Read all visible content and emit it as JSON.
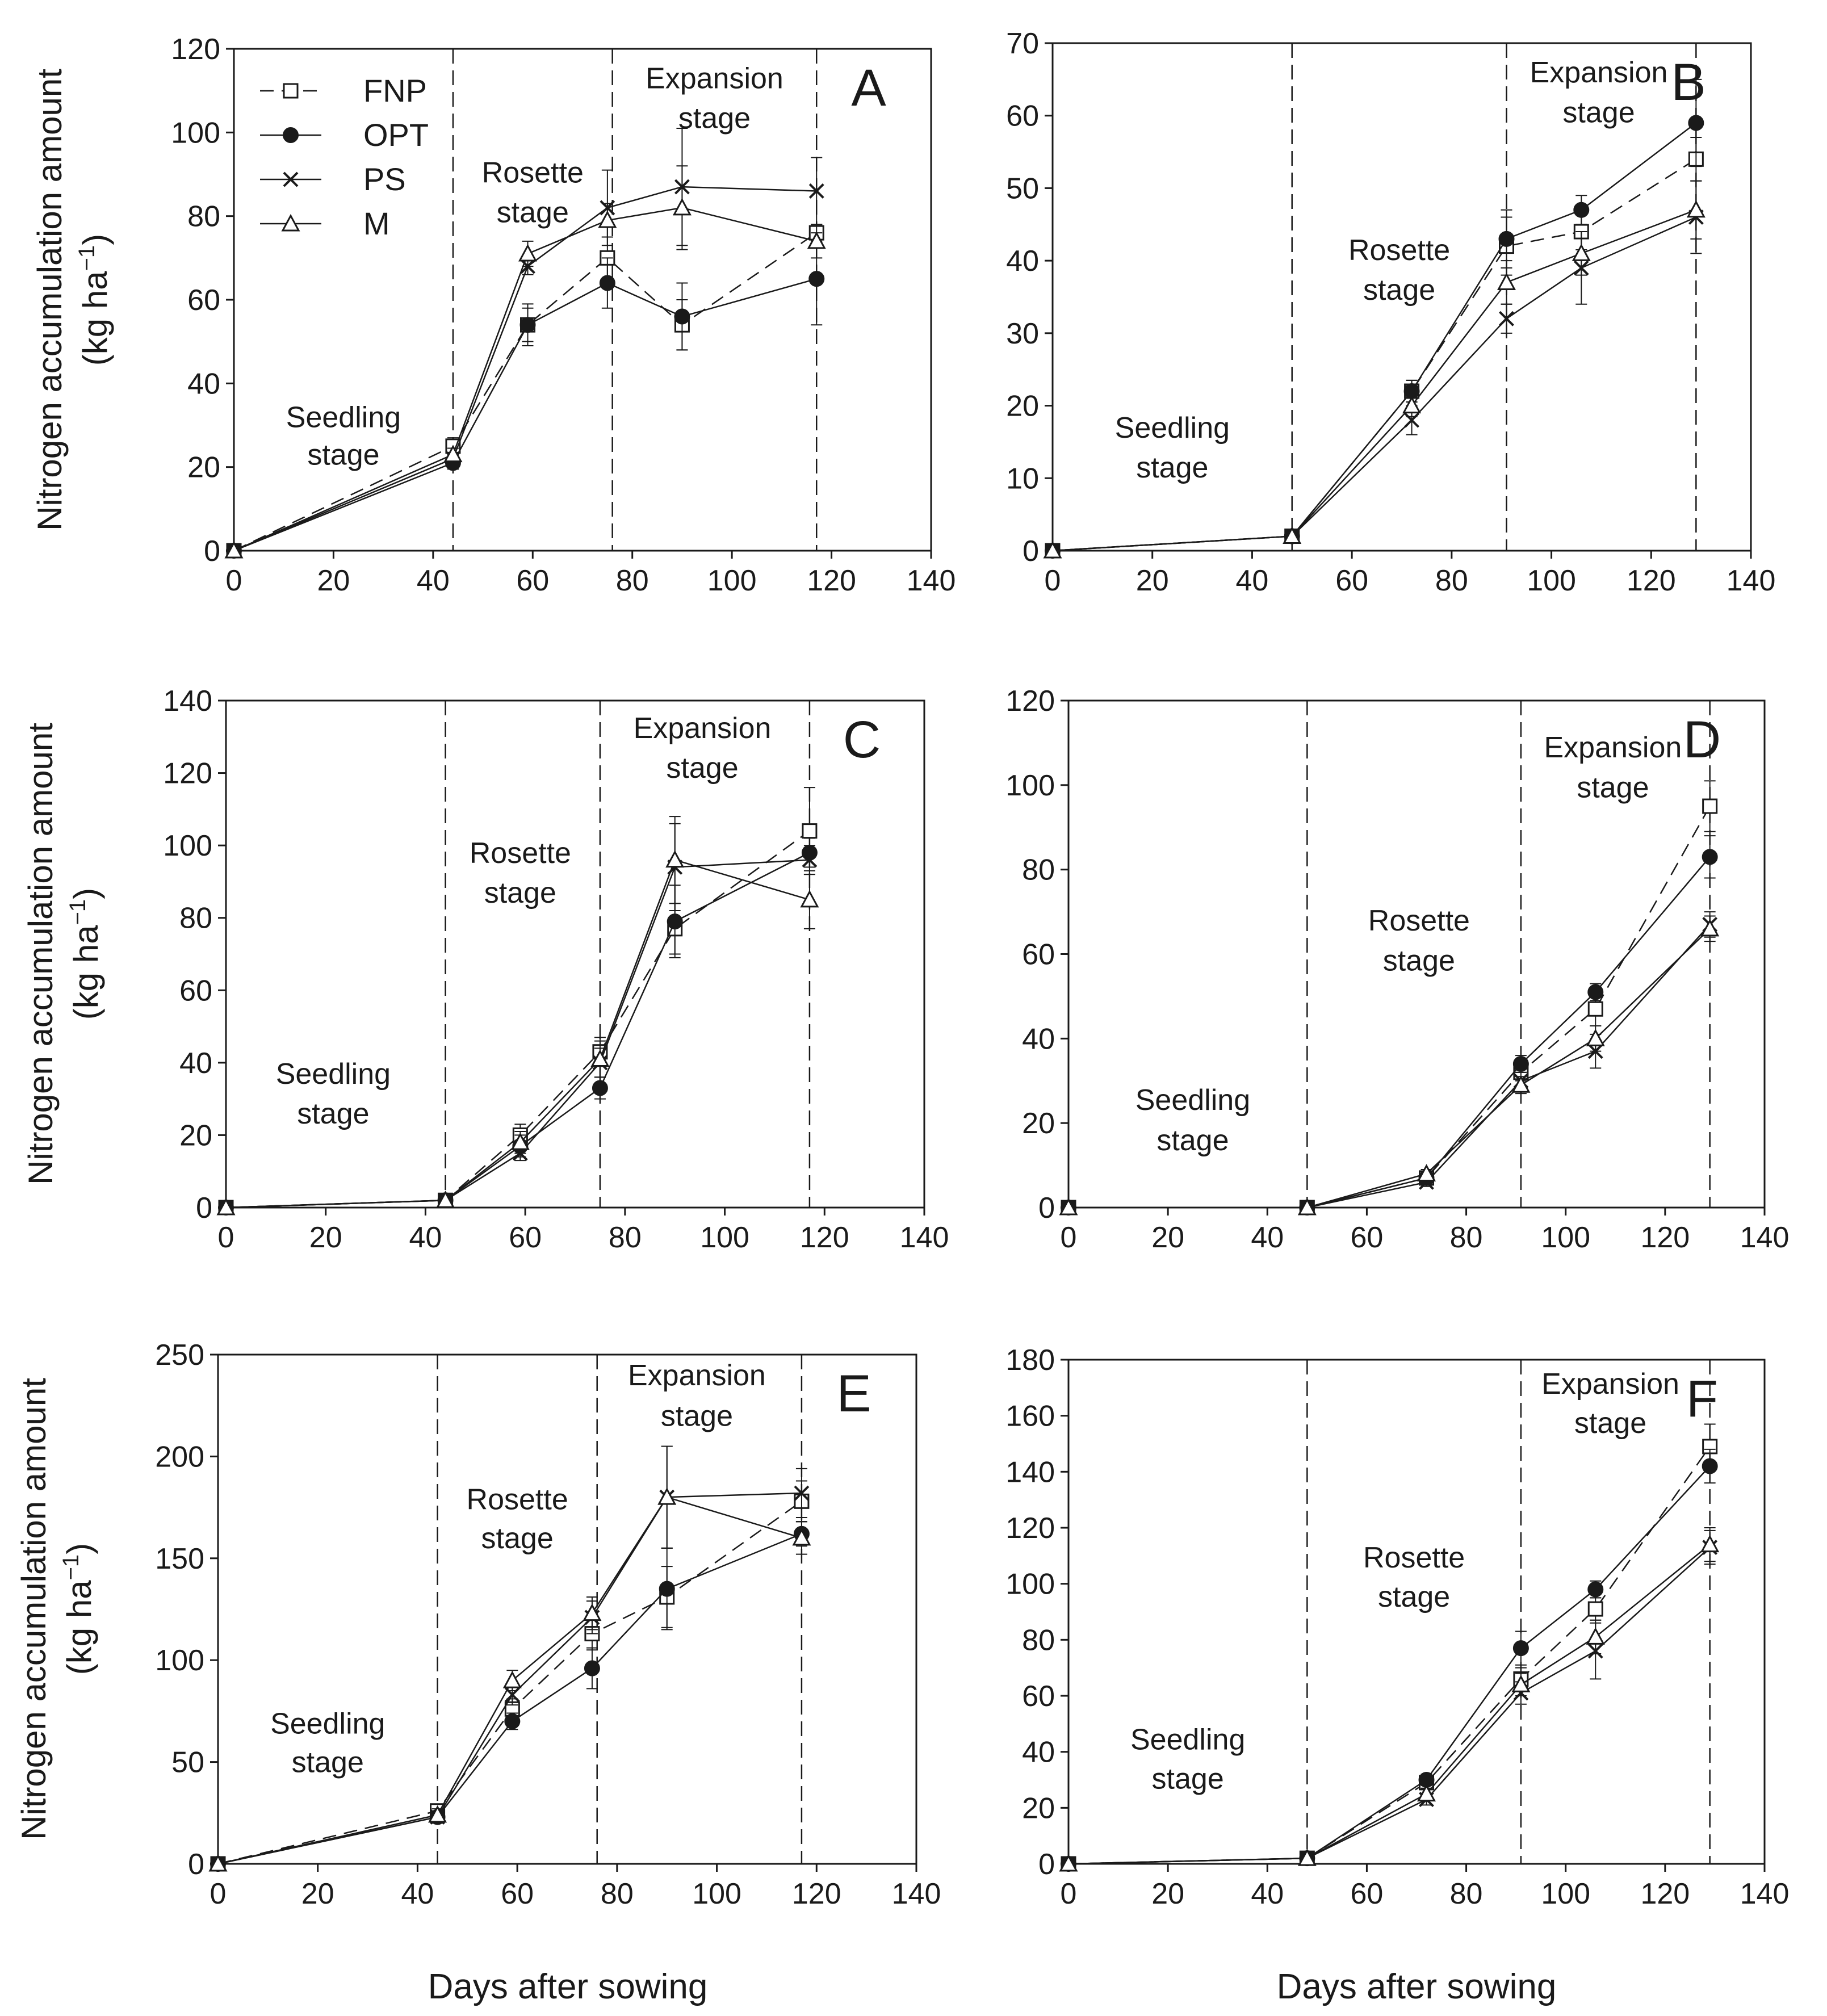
{
  "figure": {
    "x_axis_label": "Days after sowing",
    "y_axis_label_main": "Nitrogen accumulation amount",
    "y_axis_label_unit_base": "(kg ha",
    "y_axis_label_unit_sup": "−1",
    "y_axis_label_unit_end": ")"
  },
  "legend": {
    "entries": [
      {
        "series": "FNP",
        "label": "FNP"
      },
      {
        "series": "OPT",
        "label": "OPT"
      },
      {
        "series": "PS",
        "label": "PS"
      },
      {
        "series": "M",
        "label": "M"
      }
    ]
  },
  "chart_data": [
    {
      "panel": "A",
      "type": "line",
      "xlim": [
        0,
        140
      ],
      "ylim": [
        0,
        120
      ],
      "xticks": [
        0,
        20,
        40,
        60,
        80,
        100,
        120,
        140
      ],
      "yticks": [
        0,
        20,
        40,
        60,
        80,
        100,
        120
      ],
      "stage_lines": [
        44,
        76,
        117
      ],
      "stages": [
        {
          "line1": "Seedling",
          "line2": "stage",
          "x": 22,
          "y1": 32,
          "y2": 23
        },
        {
          "line1": "Rosette",
          "line2": "stage",
          "x": 60,
          "y1": 90.5,
          "y2": 81
        },
        {
          "line1": "Expansion",
          "line2": "stage",
          "x": 96.5,
          "y1": 113,
          "y2": 103.5
        }
      ],
      "x": [
        0,
        44,
        59,
        75,
        90,
        117
      ],
      "series": [
        {
          "name": "FNP",
          "values": [
            0,
            25,
            54,
            70,
            54,
            76
          ],
          "errors": [
            0,
            2,
            4,
            5,
            6,
            2
          ]
        },
        {
          "name": "OPT",
          "values": [
            0,
            21,
            54,
            64,
            56,
            65
          ],
          "errors": [
            0,
            1.5,
            5,
            6,
            8,
            11
          ]
        },
        {
          "name": "PS",
          "values": [
            0,
            22,
            68,
            82,
            87,
            86
          ],
          "errors": [
            0,
            1.5,
            2,
            9,
            14,
            8
          ]
        },
        {
          "name": "M",
          "values": [
            0,
            23,
            71,
            79,
            82,
            74
          ],
          "errors": [
            0,
            1.5,
            3,
            4,
            10,
            4
          ]
        }
      ]
    },
    {
      "panel": "B",
      "type": "line",
      "xlim": [
        0,
        140
      ],
      "ylim": [
        0,
        70
      ],
      "xticks": [
        0,
        20,
        40,
        60,
        80,
        100,
        120,
        140
      ],
      "yticks": [
        0,
        10,
        20,
        30,
        40,
        50,
        60,
        70
      ],
      "stage_lines": [
        48,
        91,
        129
      ],
      "stages": [
        {
          "line1": "Seedling",
          "line2": "stage",
          "x": 24,
          "y1": 17,
          "y2": 11.5
        },
        {
          "line1": "Rosette",
          "line2": "stage",
          "x": 69.5,
          "y1": 41.5,
          "y2": 36
        },
        {
          "line1": "Expansion",
          "line2": "stage",
          "x": 109.5,
          "y1": 66,
          "y2": 60.5
        }
      ],
      "x": [
        0,
        48,
        72,
        91,
        106,
        129
      ],
      "series": [
        {
          "name": "FNP",
          "values": [
            0,
            2,
            22,
            42,
            44,
            54
          ],
          "errors": [
            0,
            0.5,
            1.5,
            4,
            2.5,
            3
          ]
        },
        {
          "name": "OPT",
          "values": [
            0,
            2,
            22,
            43,
            47,
            59
          ],
          "errors": [
            0,
            0.5,
            1.5,
            4,
            2,
            6
          ]
        },
        {
          "name": "PS",
          "values": [
            0,
            2,
            18,
            32,
            39,
            46
          ],
          "errors": [
            0,
            0.5,
            2,
            2,
            5,
            5
          ]
        },
        {
          "name": "M",
          "values": [
            0,
            2,
            20,
            37,
            41,
            47
          ],
          "errors": [
            0,
            0.5,
            1.5,
            3,
            3,
            4
          ]
        }
      ]
    },
    {
      "panel": "C",
      "type": "line",
      "xlim": [
        0,
        140
      ],
      "ylim": [
        0,
        140
      ],
      "xticks": [
        0,
        20,
        40,
        60,
        80,
        100,
        120,
        140
      ],
      "yticks": [
        0,
        20,
        40,
        60,
        80,
        100,
        120,
        140
      ],
      "stage_lines": [
        44,
        75,
        117
      ],
      "stages": [
        {
          "line1": "Seedling",
          "line2": "stage",
          "x": 21.5,
          "y1": 37,
          "y2": 26
        },
        {
          "line1": "Rosette",
          "line2": "stage",
          "x": 59,
          "y1": 98,
          "y2": 87
        },
        {
          "line1": "Expansion",
          "line2": "stage",
          "x": 95.5,
          "y1": 132.5,
          "y2": 121.5
        }
      ],
      "x": [
        0,
        44,
        59,
        75,
        90,
        117
      ],
      "series": [
        {
          "name": "FNP",
          "values": [
            0,
            2,
            20,
            43,
            77,
            104
          ],
          "errors": [
            0,
            1,
            3,
            4,
            7,
            12
          ]
        },
        {
          "name": "OPT",
          "values": [
            0,
            2,
            17,
            33,
            79,
            98
          ],
          "errors": [
            0,
            1,
            3,
            3,
            10,
            4
          ]
        },
        {
          "name": "PS",
          "values": [
            0,
            2,
            15,
            40,
            94,
            96
          ],
          "errors": [
            0,
            1,
            2,
            4,
            12,
            4
          ]
        },
        {
          "name": "M",
          "values": [
            0,
            2,
            18,
            41,
            96,
            85
          ],
          "errors": [
            0,
            1,
            3,
            5,
            12,
            8
          ]
        }
      ]
    },
    {
      "panel": "D",
      "type": "line",
      "xlim": [
        0,
        140
      ],
      "ylim": [
        0,
        120
      ],
      "xticks": [
        0,
        20,
        40,
        60,
        80,
        100,
        120,
        140
      ],
      "yticks": [
        0,
        20,
        40,
        60,
        80,
        100,
        120
      ],
      "stage_lines": [
        48,
        91,
        129
      ],
      "stages": [
        {
          "line1": "Seedling",
          "line2": "stage",
          "x": 25,
          "y1": 25.5,
          "y2": 16
        },
        {
          "line1": "Rosette",
          "line2": "stage",
          "x": 70.5,
          "y1": 68,
          "y2": 58.5
        },
        {
          "line1": "Expansion",
          "line2": "stage",
          "x": 109.5,
          "y1": 109,
          "y2": 99.5
        }
      ],
      "x": [
        0,
        48,
        72,
        91,
        106,
        129
      ],
      "series": [
        {
          "name": "FNP",
          "values": [
            0,
            0,
            7,
            32,
            47,
            95
          ],
          "errors": [
            0,
            0.5,
            1,
            2,
            4,
            6
          ]
        },
        {
          "name": "OPT",
          "values": [
            0,
            0,
            7,
            34,
            51,
            83
          ],
          "errors": [
            0,
            0.5,
            1,
            2,
            2,
            5
          ]
        },
        {
          "name": "PS",
          "values": [
            0,
            0,
            6,
            30,
            37,
            67
          ],
          "errors": [
            0,
            0.5,
            1,
            2,
            4,
            3
          ]
        },
        {
          "name": "M",
          "values": [
            0,
            0,
            8,
            29,
            40,
            66
          ],
          "errors": [
            0,
            0.5,
            1,
            2,
            3,
            3
          ]
        }
      ]
    },
    {
      "panel": "E",
      "type": "line",
      "xlim": [
        0,
        140
      ],
      "ylim": [
        0,
        250
      ],
      "xticks": [
        0,
        20,
        40,
        60,
        80,
        100,
        120,
        140
      ],
      "yticks": [
        0,
        50,
        100,
        150,
        200,
        250
      ],
      "stage_lines": [
        44,
        76,
        117
      ],
      "stages": [
        {
          "line1": "Seedling",
          "line2": "stage",
          "x": 22,
          "y1": 69,
          "y2": 50
        },
        {
          "line1": "Rosette",
          "line2": "stage",
          "x": 60,
          "y1": 179,
          "y2": 160
        },
        {
          "line1": "Expansion",
          "line2": "stage",
          "x": 96,
          "y1": 240,
          "y2": 220
        }
      ],
      "x": [
        0,
        44,
        59,
        75,
        90,
        117
      ],
      "series": [
        {
          "name": "FNP",
          "values": [
            0,
            26,
            76,
            113,
            131,
            178
          ],
          "errors": [
            0,
            3,
            5,
            8,
            15,
            10
          ]
        },
        {
          "name": "OPT",
          "values": [
            0,
            23,
            70,
            96,
            135,
            162
          ],
          "errors": [
            0,
            3,
            4,
            10,
            20,
            6
          ]
        },
        {
          "name": "PS",
          "values": [
            0,
            23,
            83,
            121,
            180,
            182
          ],
          "errors": [
            0,
            3,
            5,
            8,
            25,
            12
          ]
        },
        {
          "name": "M",
          "values": [
            0,
            24,
            90,
            123,
            180,
            160
          ],
          "errors": [
            0,
            3,
            5,
            8,
            25,
            8
          ]
        }
      ]
    },
    {
      "panel": "F",
      "type": "line",
      "xlim": [
        0,
        140
      ],
      "ylim": [
        0,
        180
      ],
      "xticks": [
        0,
        20,
        40,
        60,
        80,
        100,
        120,
        140
      ],
      "yticks": [
        0,
        20,
        40,
        60,
        80,
        100,
        120,
        140,
        160,
        180
      ],
      "stage_lines": [
        48,
        91,
        129
      ],
      "stages": [
        {
          "line1": "Seedling",
          "line2": "stage",
          "x": 24,
          "y1": 44.5,
          "y2": 30.5
        },
        {
          "line1": "Rosette",
          "line2": "stage",
          "x": 69.5,
          "y1": 109.5,
          "y2": 95.5
        },
        {
          "line1": "Expansion",
          "line2": "stage",
          "x": 109,
          "y1": 171.5,
          "y2": 157.5
        }
      ],
      "x": [
        0,
        48,
        72,
        91,
        106,
        129
      ],
      "series": [
        {
          "name": "FNP",
          "values": [
            0,
            2,
            29,
            66,
            91,
            149
          ],
          "errors": [
            0,
            0.5,
            2,
            4,
            4,
            8
          ]
        },
        {
          "name": "OPT",
          "values": [
            0,
            2,
            30,
            77,
            98,
            142
          ],
          "errors": [
            0,
            0.5,
            2,
            6,
            3,
            6
          ]
        },
        {
          "name": "PS",
          "values": [
            0,
            2,
            23,
            61,
            76,
            113
          ],
          "errors": [
            0,
            0.5,
            2,
            4,
            10,
            6
          ]
        },
        {
          "name": "M",
          "values": [
            0,
            2,
            25,
            64,
            81,
            114
          ],
          "errors": [
            0,
            0.5,
            2,
            4,
            6,
            6
          ]
        }
      ]
    }
  ]
}
